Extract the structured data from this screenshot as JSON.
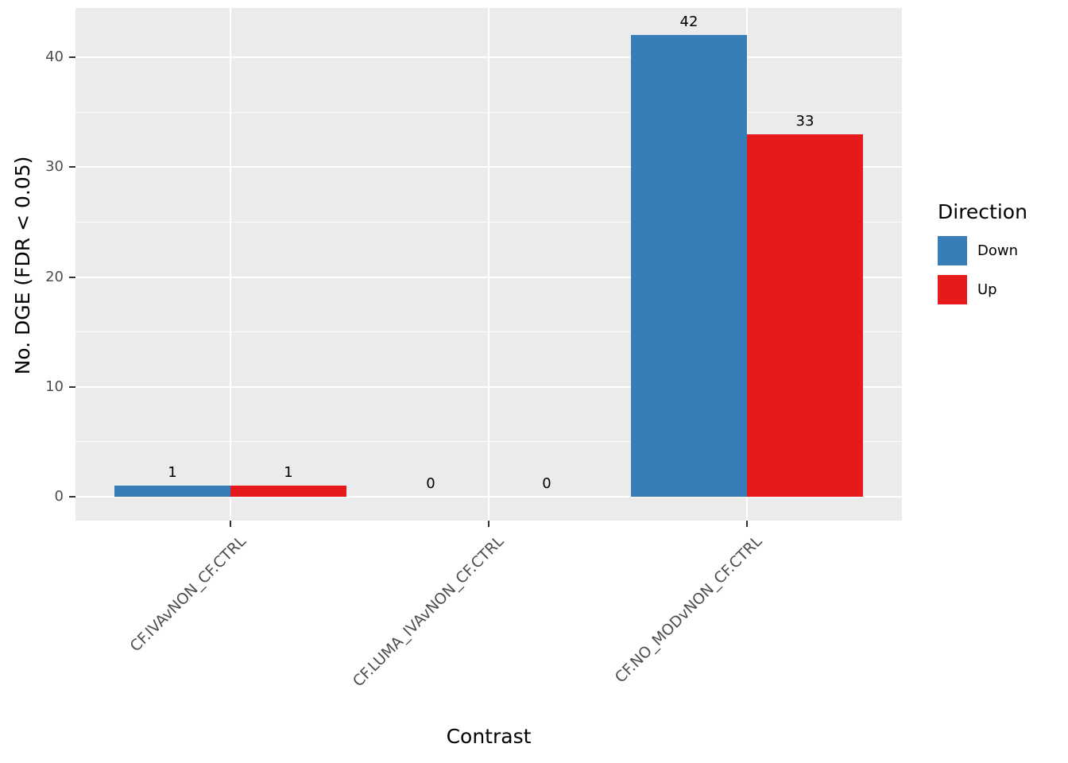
{
  "chart_data": {
    "type": "bar",
    "title": "",
    "xlabel": "Contrast",
    "ylabel": "No. DGE (FDR < 0.05)",
    "categories": [
      "CF.IVAvNON_CF.CTRL",
      "CF.LUMA_IVAvNON_CF.CTRL",
      "CF.NO_MODvNON_CF.CTRL"
    ],
    "series": [
      {
        "name": "Down",
        "color": "#377EB8",
        "values": [
          1,
          0,
          42
        ]
      },
      {
        "name": "Up",
        "color": "#E41A1C",
        "values": [
          1,
          0,
          33
        ]
      }
    ],
    "bar_value_labels_shown": true,
    "ylim": [
      0,
      44
    ],
    "yticks": [
      0,
      10,
      20,
      30,
      40
    ],
    "yticks_minor": [
      5,
      15,
      25,
      35
    ],
    "grid": "white major+minor horizontal lines and major vertical lines on grey panel",
    "legend": {
      "title": "Direction",
      "position": "right",
      "entries": [
        "Down",
        "Up"
      ]
    }
  },
  "colors": {
    "figure_background": "#FFFFFF",
    "panel_background": "#EBEBEB",
    "grid_line": "#FFFFFF",
    "axis_text": "#4D4D4D",
    "axis_title": "#000000",
    "tick_mark": "#333333",
    "bar_down": "#377EB8",
    "bar_up": "#E41A1C"
  }
}
